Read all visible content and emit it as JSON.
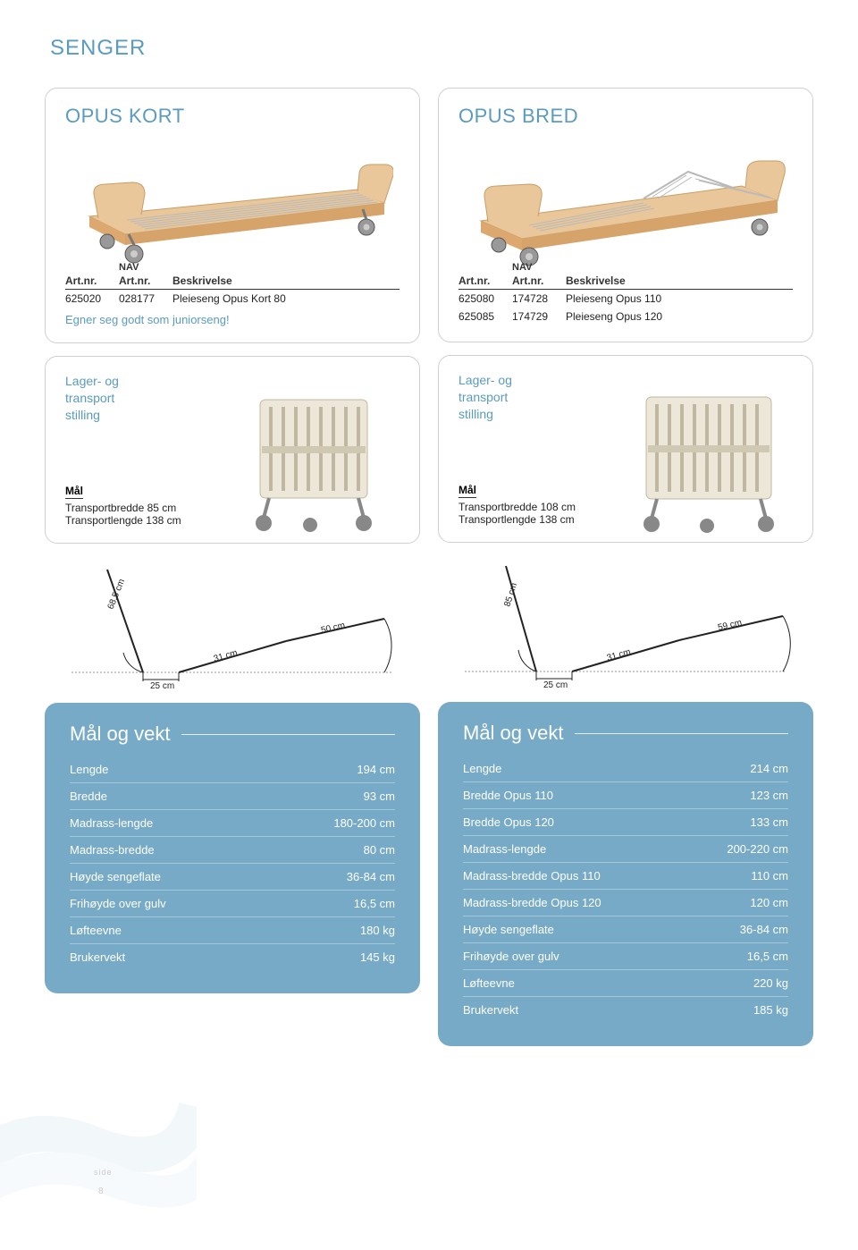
{
  "page_title": "SENGER",
  "page_num": "8",
  "side_label": "side",
  "colors": {
    "accent": "#5a9bbf",
    "spec_bg": "#76aac6",
    "text": "#222222",
    "border": "#d0d0d0"
  },
  "left": {
    "product_title": "OPUS KORT",
    "art_header": {
      "c1": "Art.nr.",
      "c2_top": "NAV",
      "c2": "Art.nr.",
      "c3": "Beskrivelse"
    },
    "art_rows": [
      {
        "c1": "625020",
        "c2": "028177",
        "c3": "Pleieseng Opus Kort 80"
      }
    ],
    "note": "Egner seg godt som juniorseng!",
    "transport_label": "Lager- og\ntransport\nstilling",
    "mal_title": "Mål",
    "mal_lines": [
      "Transportbredde  85 cm",
      "Transportlengde 138 cm"
    ],
    "diagram": {
      "a": "68,5 cm",
      "b": "31 cm",
      "c": "50 cm",
      "d": "25 cm"
    },
    "spec_title": "Mål og vekt",
    "spec_rows": [
      {
        "label": "Lengde",
        "value": "194 cm"
      },
      {
        "label": "Bredde",
        "value": "93 cm"
      },
      {
        "label": "Madrass-lengde",
        "value": "180-200 cm"
      },
      {
        "label": "Madrass-bredde",
        "value": "80 cm"
      },
      {
        "label": "Høyde sengeflate",
        "value": "36-84 cm"
      },
      {
        "label": "Frihøyde over gulv",
        "value": "16,5 cm"
      },
      {
        "label": "Løfteevne",
        "value": "180 kg"
      },
      {
        "label": "Brukervekt",
        "value": "145 kg"
      }
    ]
  },
  "right": {
    "product_title": "OPUS BRED",
    "art_header": {
      "c1": "Art.nr.",
      "c2_top": "NAV",
      "c2": "Art.nr.",
      "c3": "Beskrivelse"
    },
    "art_rows": [
      {
        "c1": "625080",
        "c2": "174728",
        "c3": "Pleieseng Opus 110"
      },
      {
        "c1": "625085",
        "c2": "174729",
        "c3": "Pleieseng Opus 120"
      }
    ],
    "transport_label": "Lager- og\ntransport\nstilling",
    "mal_title": "Mål",
    "mal_lines": [
      "Transportbredde 108 cm",
      "Transportlengde 138 cm"
    ],
    "diagram": {
      "a": "85 cm",
      "b": "31 cm",
      "c": "59 cm",
      "d": "25 cm"
    },
    "spec_title": "Mål og vekt",
    "spec_rows": [
      {
        "label": "Lengde",
        "value": "214 cm"
      },
      {
        "label": "Bredde Opus 110",
        "value": "123 cm"
      },
      {
        "label": "Bredde Opus 120",
        "value": "133 cm"
      },
      {
        "label": "Madrass-lengde",
        "value": "200-220 cm"
      },
      {
        "label": "Madrass-bredde Opus 110",
        "value": "110 cm"
      },
      {
        "label": "Madrass-bredde Opus 120",
        "value": "120 cm"
      },
      {
        "label": "Høyde sengeflate",
        "value": "36-84 cm"
      },
      {
        "label": "Frihøyde over gulv",
        "value": "16,5 cm"
      },
      {
        "label": "Løfteevne",
        "value": "220 kg"
      },
      {
        "label": "Brukervekt",
        "value": "185 kg"
      }
    ]
  }
}
